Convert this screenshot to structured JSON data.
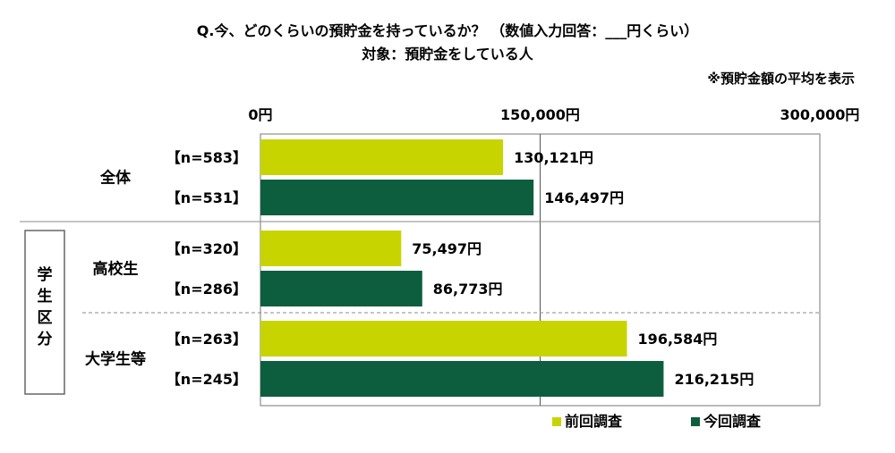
{
  "chart_data": {
    "type": "bar",
    "orientation": "horizontal",
    "title": "Q.今、どのくらいの預貯金を持っているか？ （数値入力回答：___円くらい）",
    "subtitle": "対象：預貯金をしている人",
    "note": "※預貯金額の平均を表示",
    "xlim": [
      0,
      300000
    ],
    "x_ticks": [
      "0円",
      "150,000円",
      "300,000円"
    ],
    "group_label_student": "学生区分",
    "groups": [
      {
        "label": "全体",
        "bars": [
          {
            "series": "前回調査",
            "n": "【n=583】",
            "value": 130121,
            "value_label": "130,121円"
          },
          {
            "series": "今回調査",
            "n": "【n=531】",
            "value": 146497,
            "value_label": "146,497円"
          }
        ]
      },
      {
        "label": "高校生",
        "bars": [
          {
            "series": "前回調査",
            "n": "【n=320】",
            "value": 75497,
            "value_label": "75,497円"
          },
          {
            "series": "今回調査",
            "n": "【n=286】",
            "value": 86773,
            "value_label": "86,773円"
          }
        ]
      },
      {
        "label": "大学生等",
        "bars": [
          {
            "series": "前回調査",
            "n": "【n=263】",
            "value": 196584,
            "value_label": "196,584円"
          },
          {
            "series": "今回調査",
            "n": "【n=245】",
            "value": 216215,
            "value_label": "216,215円"
          }
        ]
      }
    ],
    "series": [
      {
        "name": "前回調査",
        "color": "#c8d400"
      },
      {
        "name": "今回調査",
        "color": "#0d5e3f"
      }
    ],
    "legend_position": "bottom-right",
    "grid": true
  }
}
